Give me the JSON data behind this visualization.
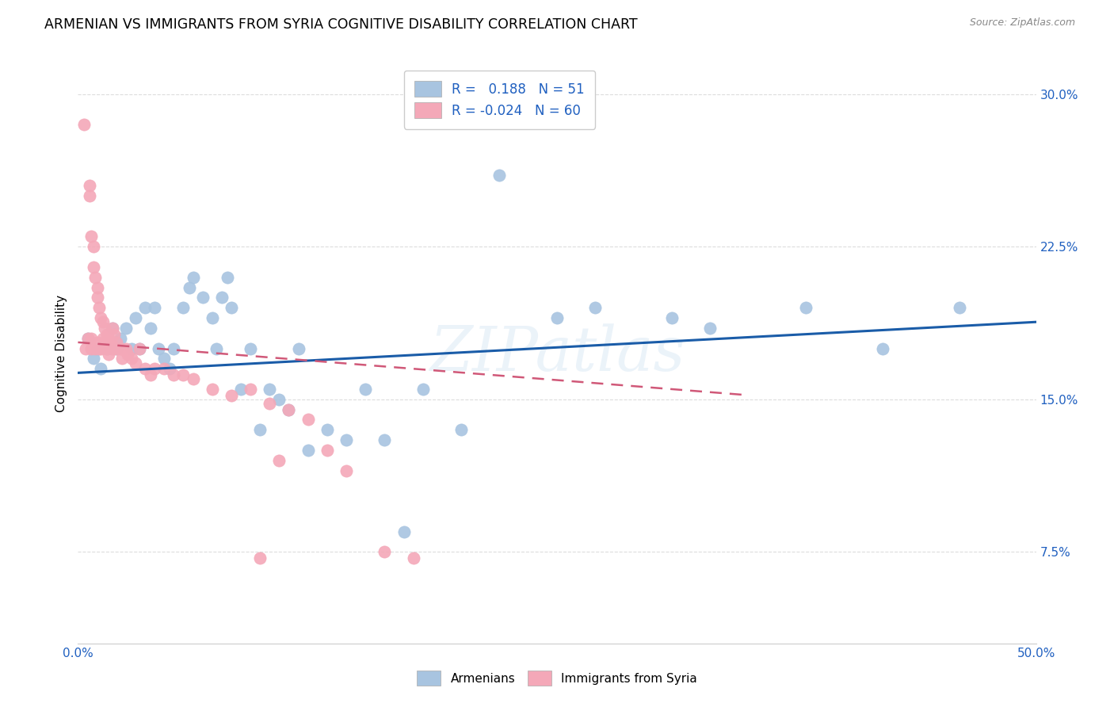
{
  "title": "ARMENIAN VS IMMIGRANTS FROM SYRIA COGNITIVE DISABILITY CORRELATION CHART",
  "source": "Source: ZipAtlas.com",
  "ylabel": "Cognitive Disability",
  "x_min": 0.0,
  "x_max": 0.5,
  "y_min": 0.03,
  "y_max": 0.315,
  "y_ticks": [
    0.075,
    0.15,
    0.225,
    0.3
  ],
  "y_tick_labels": [
    "7.5%",
    "15.0%",
    "22.5%",
    "30.0%"
  ],
  "x_ticks": [
    0.0,
    0.1,
    0.2,
    0.3,
    0.4,
    0.5
  ],
  "x_tick_labels": [
    "0.0%",
    "",
    "",
    "",
    "",
    "50.0%"
  ],
  "armenian_color": "#a8c4e0",
  "syria_color": "#f4a8b8",
  "trendline_armenian_color": "#1a5ca8",
  "trendline_syria_color": "#d05878",
  "legend_r_armenian": "0.188",
  "legend_n_armenian": "51",
  "legend_r_syria": "-0.024",
  "legend_n_syria": "60",
  "watermark": "ZIPatlas",
  "background_color": "#ffffff",
  "armenian_x": [
    0.005,
    0.008,
    0.01,
    0.012,
    0.015,
    0.018,
    0.02,
    0.022,
    0.025,
    0.028,
    0.03,
    0.032,
    0.035,
    0.038,
    0.04,
    0.042,
    0.045,
    0.048,
    0.05,
    0.055,
    0.058,
    0.06,
    0.065,
    0.07,
    0.072,
    0.075,
    0.078,
    0.08,
    0.085,
    0.09,
    0.095,
    0.1,
    0.105,
    0.11,
    0.115,
    0.12,
    0.13,
    0.14,
    0.15,
    0.16,
    0.17,
    0.18,
    0.2,
    0.22,
    0.25,
    0.27,
    0.31,
    0.33,
    0.38,
    0.42,
    0.46
  ],
  "armenian_y": [
    0.18,
    0.17,
    0.175,
    0.165,
    0.175,
    0.185,
    0.175,
    0.18,
    0.185,
    0.175,
    0.19,
    0.175,
    0.195,
    0.185,
    0.195,
    0.175,
    0.17,
    0.165,
    0.175,
    0.195,
    0.205,
    0.21,
    0.2,
    0.19,
    0.175,
    0.2,
    0.21,
    0.195,
    0.155,
    0.175,
    0.135,
    0.155,
    0.15,
    0.145,
    0.175,
    0.125,
    0.135,
    0.13,
    0.155,
    0.13,
    0.085,
    0.155,
    0.135,
    0.26,
    0.19,
    0.195,
    0.19,
    0.185,
    0.195,
    0.175,
    0.195
  ],
  "syria_x": [
    0.003,
    0.004,
    0.005,
    0.006,
    0.006,
    0.007,
    0.007,
    0.007,
    0.008,
    0.008,
    0.009,
    0.009,
    0.01,
    0.01,
    0.01,
    0.011,
    0.011,
    0.012,
    0.012,
    0.013,
    0.013,
    0.014,
    0.014,
    0.015,
    0.015,
    0.015,
    0.016,
    0.016,
    0.017,
    0.018,
    0.018,
    0.019,
    0.02,
    0.02,
    0.022,
    0.023,
    0.025,
    0.026,
    0.028,
    0.03,
    0.032,
    0.035,
    0.038,
    0.04,
    0.045,
    0.05,
    0.055,
    0.06,
    0.07,
    0.08,
    0.09,
    0.095,
    0.1,
    0.105,
    0.11,
    0.12,
    0.13,
    0.14,
    0.16,
    0.175
  ],
  "syria_y": [
    0.285,
    0.175,
    0.18,
    0.255,
    0.25,
    0.23,
    0.18,
    0.175,
    0.225,
    0.215,
    0.21,
    0.175,
    0.205,
    0.2,
    0.178,
    0.195,
    0.175,
    0.19,
    0.175,
    0.188,
    0.18,
    0.185,
    0.178,
    0.182,
    0.18,
    0.175,
    0.18,
    0.172,
    0.178,
    0.185,
    0.175,
    0.182,
    0.178,
    0.175,
    0.175,
    0.17,
    0.175,
    0.172,
    0.17,
    0.168,
    0.175,
    0.165,
    0.162,
    0.165,
    0.165,
    0.162,
    0.162,
    0.16,
    0.155,
    0.152,
    0.155,
    0.072,
    0.148,
    0.12,
    0.145,
    0.14,
    0.125,
    0.115,
    0.075,
    0.072
  ],
  "trendline_arm_x0": 0.0,
  "trendline_arm_x1": 0.5,
  "trendline_arm_y0": 0.163,
  "trendline_arm_y1": 0.188,
  "trendline_syr_x0": 0.0,
  "trendline_syr_x1": 0.35,
  "trendline_syr_y0": 0.178,
  "trendline_syr_y1": 0.152
}
